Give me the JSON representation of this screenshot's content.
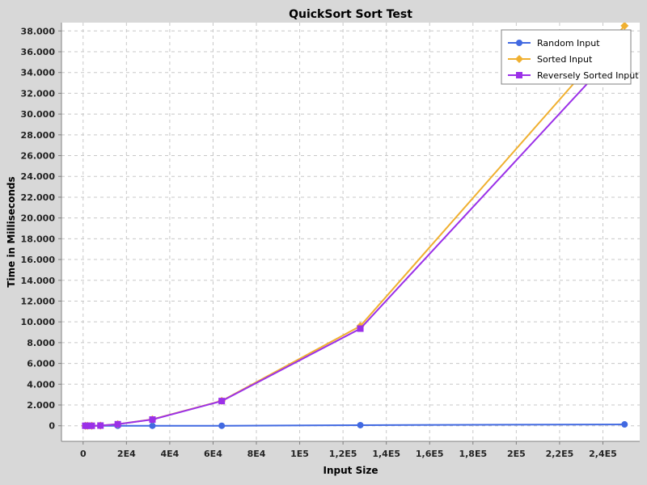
{
  "chart_data": {
    "type": "line",
    "title": "QuickSort Sort Test",
    "xlabel": "Input Size",
    "ylabel": "Time in Milliseconds",
    "xlim": [
      -10000,
      257000
    ],
    "ylim": [
      -1500,
      38800
    ],
    "x_ticks": [
      0,
      20000,
      40000,
      60000,
      80000,
      100000,
      120000,
      140000,
      160000,
      180000,
      200000,
      220000,
      240000
    ],
    "x_tick_labels": [
      "0",
      "2E4",
      "4E4",
      "6E4",
      "8E4",
      "1E5",
      "1,2E5",
      "1,4E5",
      "1,6E5",
      "1,8E5",
      "2E5",
      "2,2E5",
      "2,4E5"
    ],
    "y_ticks": [
      0,
      2000,
      4000,
      6000,
      8000,
      10000,
      12000,
      14000,
      16000,
      18000,
      20000,
      22000,
      24000,
      26000,
      28000,
      30000,
      32000,
      34000,
      36000,
      38000
    ],
    "y_tick_labels": [
      "0",
      "2.000",
      "4.000",
      "6.000",
      "8.000",
      "10.000",
      "12.000",
      "14.000",
      "16.000",
      "18.000",
      "20.000",
      "22.000",
      "24.000",
      "26.000",
      "28.000",
      "30.000",
      "32.000",
      "34.000",
      "36.000",
      "38.000"
    ],
    "grid": true,
    "legend_position": "top-right",
    "series": [
      {
        "name": "Random Input",
        "color": "#4169e1",
        "marker": "circle",
        "x": [
          1000,
          2000,
          4000,
          8000,
          16000,
          32000,
          64000,
          128000,
          250000
        ],
        "y": [
          0,
          0,
          0,
          0,
          0,
          0,
          0,
          60,
          130
        ]
      },
      {
        "name": "Sorted Input",
        "color": "#f0b030",
        "marker": "diamond",
        "x": [
          1000,
          2000,
          4000,
          8000,
          16000,
          32000,
          64000,
          128000,
          250000
        ],
        "y": [
          0,
          0,
          0,
          20,
          150,
          620,
          2400,
          9600,
          38500
        ]
      },
      {
        "name": "Reversely Sorted Input",
        "color": "#9b30e8",
        "marker": "square",
        "x": [
          1000,
          2000,
          4000,
          8000,
          16000,
          32000,
          64000,
          128000,
          250000
        ],
        "y": [
          0,
          0,
          0,
          20,
          150,
          600,
          2380,
          9350,
          36800
        ]
      }
    ]
  }
}
